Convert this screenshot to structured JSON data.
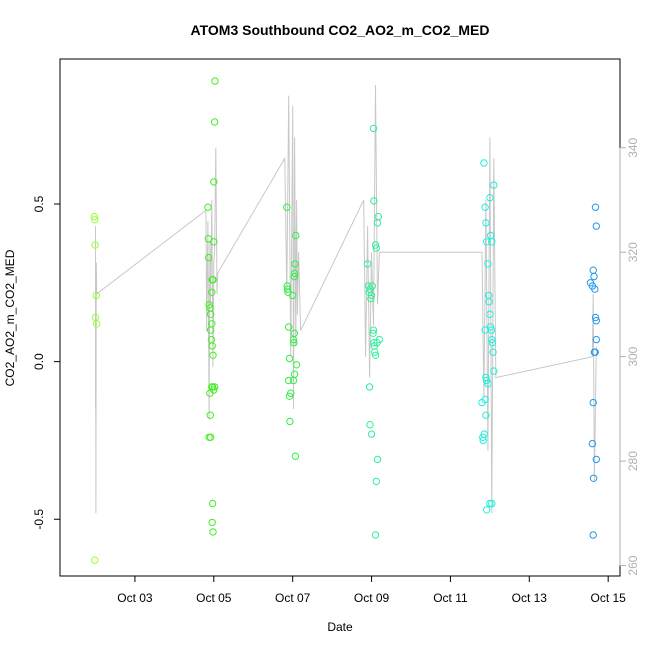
{
  "chart_data": {
    "type": "scatter",
    "title": "ATOM3 Southbound CO2_AO2_m_CO2_MED",
    "xlabel": "Date",
    "ylabel": "CO2_AO2_m_CO2_MED",
    "xlim": [
      1.1,
      15.3
    ],
    "ylim": [
      -0.68,
      0.96
    ],
    "y2lim": [
      258,
      357
    ],
    "x_ticks": [
      {
        "value": 3,
        "label": "Oct 03"
      },
      {
        "value": 5,
        "label": "Oct 05"
      },
      {
        "value": 7,
        "label": "Oct 07"
      },
      {
        "value": 9,
        "label": "Oct 09"
      },
      {
        "value": 11,
        "label": "Oct 11"
      },
      {
        "value": 13,
        "label": "Oct 13"
      },
      {
        "value": 15,
        "label": "Oct 15"
      }
    ],
    "y_ticks": [
      {
        "value": -0.5,
        "label": "-0.5"
      },
      {
        "value": 0.0,
        "label": "0.0"
      },
      {
        "value": 0.5,
        "label": "0.5"
      }
    ],
    "y2_ticks": [
      {
        "value": 260,
        "label": "260"
      },
      {
        "value": 280,
        "label": "280"
      },
      {
        "value": 300,
        "label": "300"
      },
      {
        "value": 320,
        "label": "320"
      },
      {
        "value": 340,
        "label": "340"
      }
    ],
    "grid": false,
    "colors": {
      "line": "#c8c8c8",
      "axis": "#000000",
      "axis_right": "#b0b0b0"
    },
    "line_series": {
      "axis": "right",
      "x": [
        2.0,
        2.0,
        2.01,
        2.02,
        2.03,
        4.8,
        4.82,
        4.85,
        4.88,
        4.9,
        4.92,
        4.95,
        4.98,
        5.0,
        5.02,
        5.05,
        5.08,
        5.1,
        6.8,
        6.85,
        6.9,
        6.95,
        7.0,
        7.02,
        7.05,
        7.08,
        7.1,
        7.12,
        7.15,
        7.2,
        8.8,
        8.85,
        8.9,
        8.95,
        9.0,
        9.05,
        9.1,
        9.15,
        9.2,
        11.8,
        11.85,
        11.9,
        11.95,
        12.0,
        12.05,
        12.1,
        12.15,
        14.6,
        14.62,
        14.65,
        14.7
      ],
      "y": [
        290,
        325,
        270,
        318,
        312,
        328,
        305,
        326,
        288,
        322,
        310,
        330,
        298,
        318,
        320,
        340,
        312,
        316,
        338,
        312,
        350,
        300,
        348,
        290,
        342,
        302,
        330,
        308,
        320,
        305,
        330,
        300,
        325,
        296,
        320,
        306,
        352,
        310,
        320,
        320,
        292,
        330,
        282,
        342,
        270,
        338,
        296,
        300,
        312,
        276,
        302
      ]
    },
    "series": [
      {
        "color": "#99ff33",
        "points": [
          [
            1.97,
            0.46
          ],
          [
            1.98,
            0.45
          ],
          [
            1.99,
            0.37
          ],
          [
            2.0,
            0.14
          ],
          [
            2.02,
            0.21
          ],
          [
            2.03,
            0.12
          ],
          [
            1.98,
            -0.63
          ]
        ]
      },
      {
        "color": "#44ee22",
        "points": [
          [
            4.85,
            0.49
          ],
          [
            4.86,
            0.39
          ],
          [
            4.87,
            0.33
          ],
          [
            4.88,
            0.18
          ],
          [
            4.9,
            0.17
          ],
          [
            4.92,
            0.15
          ],
          [
            4.95,
            0.12
          ],
          [
            4.96,
            0.05
          ],
          [
            4.98,
            0.02
          ],
          [
            4.9,
            -0.1
          ],
          [
            4.91,
            -0.17
          ],
          [
            4.88,
            -0.24
          ],
          [
            4.92,
            -0.24
          ],
          [
            4.95,
            -0.08
          ],
          [
            4.97,
            -0.08
          ],
          [
            5.0,
            -0.09
          ],
          [
            5.02,
            -0.08
          ],
          [
            4.97,
            -0.45
          ],
          [
            4.96,
            -0.51
          ],
          [
            4.98,
            -0.54
          ],
          [
            5.0,
            0.57
          ],
          [
            5.02,
            0.76
          ],
          [
            5.03,
            0.89
          ],
          [
            5.0,
            0.38
          ],
          [
            4.98,
            0.26
          ],
          [
            4.96,
            0.26
          ],
          [
            4.95,
            0.22
          ],
          [
            4.92,
            0.1
          ],
          [
            4.94,
            0.07
          ]
        ]
      },
      {
        "color": "#33ee44",
        "points": [
          [
            6.85,
            0.49
          ],
          [
            6.86,
            0.24
          ],
          [
            6.87,
            0.23
          ],
          [
            6.88,
            0.22
          ],
          [
            6.9,
            0.11
          ],
          [
            6.92,
            0.01
          ],
          [
            6.9,
            -0.06
          ],
          [
            6.92,
            -0.11
          ],
          [
            6.95,
            -0.1
          ],
          [
            6.93,
            -0.19
          ],
          [
            7.0,
            0.21
          ],
          [
            7.02,
            0.07
          ],
          [
            7.03,
            0.06
          ],
          [
            7.04,
            0.09
          ],
          [
            7.05,
            0.28
          ],
          [
            7.06,
            0.31
          ],
          [
            7.08,
            0.4
          ],
          [
            7.1,
            -0.01
          ],
          [
            7.05,
            -0.04
          ],
          [
            7.02,
            -0.06
          ],
          [
            7.07,
            -0.3
          ],
          [
            7.04,
            0.27
          ]
        ]
      },
      {
        "color": "#33ee99",
        "points": [
          [
            8.9,
            0.31
          ],
          [
            8.92,
            0.24
          ],
          [
            8.94,
            0.22
          ],
          [
            8.96,
            0.23
          ],
          [
            8.98,
            0.2
          ],
          [
            9.0,
            0.21
          ],
          [
            9.02,
            0.24
          ],
          [
            9.04,
            0.09
          ],
          [
            9.05,
            0.1
          ],
          [
            9.06,
            0.06
          ],
          [
            9.07,
            0.05
          ],
          [
            9.08,
            0.03
          ],
          [
            9.1,
            0.02
          ],
          [
            8.95,
            -0.08
          ],
          [
            8.96,
            -0.2
          ],
          [
            9.0,
            -0.23
          ],
          [
            9.05,
            0.74
          ],
          [
            9.06,
            0.51
          ],
          [
            9.1,
            0.37
          ],
          [
            9.15,
            0.44
          ],
          [
            9.17,
            0.46
          ],
          [
            9.12,
            0.36
          ],
          [
            9.15,
            -0.31
          ],
          [
            9.12,
            -0.38
          ],
          [
            9.1,
            -0.55
          ],
          [
            9.14,
            0.06
          ],
          [
            9.2,
            0.07
          ]
        ]
      },
      {
        "color": "#22eedd",
        "points": [
          [
            11.85,
            0.63
          ],
          [
            11.88,
            0.49
          ],
          [
            11.9,
            0.44
          ],
          [
            11.92,
            0.38
          ],
          [
            11.95,
            0.31
          ],
          [
            11.97,
            0.21
          ],
          [
            11.98,
            0.19
          ],
          [
            12.0,
            0.15
          ],
          [
            12.02,
            0.11
          ],
          [
            12.04,
            0.1
          ],
          [
            12.05,
            0.07
          ],
          [
            12.06,
            0.06
          ],
          [
            11.88,
            0.1
          ],
          [
            11.9,
            -0.05
          ],
          [
            11.92,
            -0.06
          ],
          [
            11.95,
            -0.07
          ],
          [
            11.8,
            -0.13
          ],
          [
            11.82,
            -0.24
          ],
          [
            11.83,
            -0.25
          ],
          [
            11.86,
            -0.23
          ],
          [
            11.88,
            -0.12
          ],
          [
            11.9,
            -0.17
          ],
          [
            12.0,
            0.52
          ],
          [
            12.02,
            0.4
          ],
          [
            12.05,
            0.38
          ],
          [
            12.1,
            0.56
          ],
          [
            12.08,
            0.03
          ],
          [
            12.1,
            -0.03
          ],
          [
            11.92,
            -0.47
          ],
          [
            12.0,
            -0.45
          ],
          [
            12.05,
            -0.45
          ]
        ]
      },
      {
        "color": "#2299ee",
        "points": [
          [
            14.55,
            0.25
          ],
          [
            14.6,
            0.24
          ],
          [
            14.62,
            0.29
          ],
          [
            14.64,
            0.27
          ],
          [
            14.66,
            0.23
          ],
          [
            14.68,
            0.14
          ],
          [
            14.7,
            0.13
          ],
          [
            14.65,
            0.03
          ],
          [
            14.67,
            0.03
          ],
          [
            14.7,
            0.07
          ],
          [
            14.68,
            0.49
          ],
          [
            14.7,
            0.43
          ],
          [
            14.62,
            -0.13
          ],
          [
            14.6,
            -0.26
          ],
          [
            14.63,
            -0.37
          ],
          [
            14.7,
            -0.31
          ],
          [
            14.62,
            -0.55
          ]
        ]
      }
    ]
  }
}
